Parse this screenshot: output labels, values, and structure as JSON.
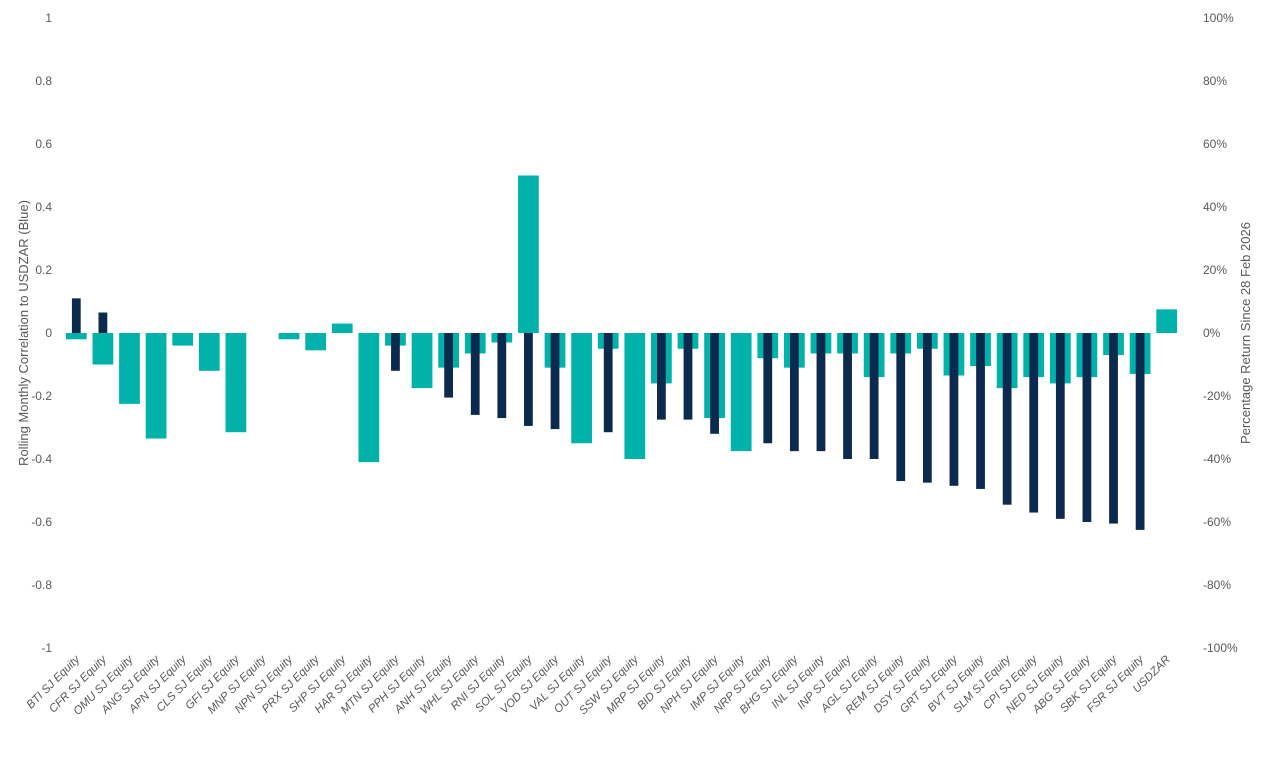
{
  "chart_data": {
    "type": "bar",
    "title": "",
    "categories": [
      "BTI SJ Equity",
      "CFR SJ Equity",
      "OMU SJ Equity",
      "ANG SJ Equity",
      "APN SJ Equity",
      "CLS SJ Equity",
      "GFI SJ Equity",
      "MNP SJ Equity",
      "NPN SJ Equity",
      "PRX SJ Equity",
      "SHP SJ Equity",
      "HAR SJ Equity",
      "MTN SJ Equity",
      "PPH SJ Equity",
      "ANH SJ Equity",
      "WHL SJ Equity",
      "RNI SJ Equity",
      "SOL SJ Equity",
      "VOD SJ Equity",
      "VAL SJ Equity",
      "OUT SJ Equity",
      "SSW SJ Equity",
      "MRP SJ Equity",
      "BID SJ Equity",
      "NPH SJ Equity",
      "IMP SJ Equity",
      "NRP SJ Equity",
      "BHG SJ Equity",
      "INL SJ Equity",
      "INP SJ Equity",
      "AGL SJ Equity",
      "REM SJ Equity",
      "DSY SJ Equity",
      "GRT SJ Equity",
      "BVT SJ Equity",
      "SLM SJ Equity",
      "CPI SJ Equity",
      "NED SJ Equity",
      "ABG SJ Equity",
      "SBK SJ Equity",
      "FSR SJ Equity",
      "USDZAR"
    ],
    "series": [
      {
        "axis": "left",
        "color": "#0b2a4d",
        "values": [
          0.11,
          0.065,
          null,
          null,
          null,
          null,
          null,
          null,
          null,
          null,
          null,
          null,
          -0.12,
          null,
          -0.205,
          -0.26,
          -0.27,
          -0.295,
          -0.305,
          null,
          -0.315,
          null,
          -0.275,
          -0.275,
          -0.32,
          null,
          -0.35,
          -0.375,
          -0.375,
          -0.4,
          -0.4,
          -0.47,
          -0.475,
          -0.485,
          -0.495,
          -0.545,
          -0.57,
          -0.59,
          -0.6,
          -0.605,
          -0.625,
          null
        ]
      },
      {
        "axis": "right",
        "color": "#00b2a9",
        "values": [
          -2,
          -10,
          -22.5,
          -33.5,
          -4,
          -12,
          -31.5,
          null,
          -2,
          -5.5,
          3,
          -41,
          -4,
          -17.5,
          -11,
          -6.5,
          -3,
          50,
          -11,
          -35,
          -5,
          -40,
          -16,
          -5,
          -27,
          -37.5,
          -8,
          -11,
          -6.5,
          -6.5,
          -14,
          -6.5,
          -5,
          -13.5,
          -10.5,
          -17.5,
          -14,
          -16,
          -14,
          -7,
          -13,
          7.5
        ]
      }
    ],
    "y_left": {
      "label": "Rolling Monthly Correlation to USDZAR (Blue)",
      "ylim": [
        -1,
        1
      ],
      "ticks": [
        "1",
        "0.8",
        "0.6",
        "0.4",
        "0.2",
        "0",
        "-0.2",
        "-0.4",
        "-0.6",
        "-0.8",
        "-1"
      ]
    },
    "y_right": {
      "label": "Percentage Return Since 28 Feb 2026",
      "ylim": [
        -100,
        100
      ],
      "ticks": [
        "100%",
        "80%",
        "60%",
        "40%",
        "20%",
        "0%",
        "-20%",
        "-40%",
        "-60%",
        "-80%",
        "-100%"
      ]
    },
    "grid": false,
    "legend": "none"
  }
}
